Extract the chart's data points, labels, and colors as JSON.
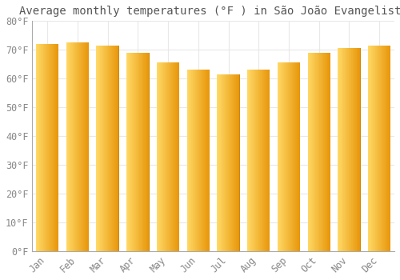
{
  "title": "Average monthly temperatures (°F ) in São João Evangelista",
  "months": [
    "Jan",
    "Feb",
    "Mar",
    "Apr",
    "May",
    "Jun",
    "Jul",
    "Aug",
    "Sep",
    "Oct",
    "Nov",
    "Dec"
  ],
  "values": [
    72,
    72.5,
    71.5,
    69,
    65.5,
    63,
    61.5,
    63,
    65.5,
    69,
    70.5,
    71.5
  ],
  "bar_color_left": "#FFD966",
  "bar_color_mid": "#FFC125",
  "bar_color_right": "#F0A500",
  "bar_width": 0.75,
  "ylim": [
    0,
    80
  ],
  "yticks": [
    0,
    10,
    20,
    30,
    40,
    50,
    60,
    70,
    80
  ],
  "ytick_labels": [
    "0°F",
    "10°F",
    "20°F",
    "30°F",
    "40°F",
    "50°F",
    "60°F",
    "70°F",
    "80°F"
  ],
  "background_color": "#FFFFFF",
  "grid_color": "#E8E8E8",
  "title_fontsize": 10,
  "tick_fontsize": 8.5,
  "font_family": "monospace",
  "tick_color": "#888888",
  "spine_color": "#AAAAAA"
}
